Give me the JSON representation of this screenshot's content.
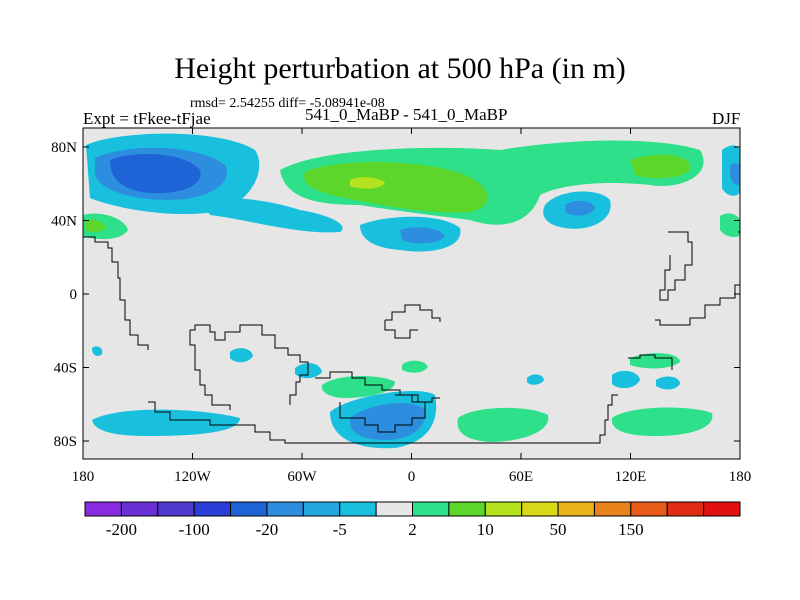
{
  "title": "Height perturbation at 500 hPa (in m)",
  "stats": "rmsd= 2.54255 diff= -5.08941e-08",
  "left_label": "Expt = tFkee-tFjae",
  "center_label": "541_0_MaBP - 541_0_MaBP",
  "right_label": "DJF",
  "axes": {
    "lon_ticks": [
      "180",
      "120W",
      "60W",
      "0",
      "60E",
      "120E",
      "180"
    ],
    "lat_ticks": [
      "80N",
      "40N",
      "0",
      "40S",
      "80S"
    ]
  },
  "colorbar": {
    "colors": [
      "#8a2be2",
      "#6b2fd6",
      "#4f3ad0",
      "#2a3fd8",
      "#1f64d6",
      "#2d8ee0",
      "#22a6e0",
      "#19c0de",
      "#e6e6e6",
      "#2fe08a",
      "#5cd62a",
      "#b4e21e",
      "#d8d818",
      "#e8b41a",
      "#e8821a",
      "#e85a18",
      "#e02c12",
      "#e21010"
    ],
    "labels": [
      "-200",
      "-100",
      "-20",
      "-5",
      "2",
      "10",
      "50",
      "150"
    ]
  },
  "map": {
    "background": "#e6e6e6",
    "coast_color": "#000000"
  }
}
